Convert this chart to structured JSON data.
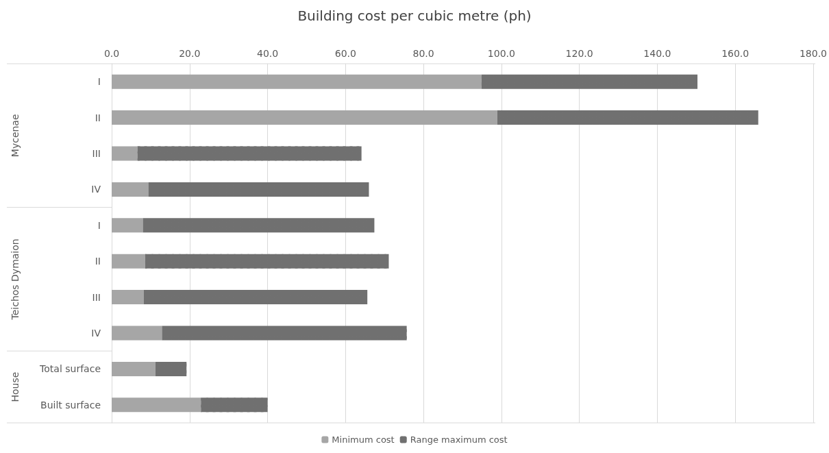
{
  "chart_data": {
    "type": "bar",
    "orientation": "horizontal",
    "stacked": true,
    "title": "Building cost per cubic metre (ph)",
    "categories": [
      "I",
      "II",
      "III",
      "IV",
      "I",
      "II",
      "III",
      "IV",
      "Total surface",
      "Built surface"
    ],
    "series": [
      {
        "name": "Minimum cost",
        "color": "#a6a6a6",
        "values": [
          94.9,
          98.9,
          6.6,
          9.4,
          8.0,
          8.6,
          8.2,
          12.9,
          11.2,
          22.9
        ]
      },
      {
        "name": "Range maximum cost",
        "color": "#707070",
        "values": [
          55.4,
          67.0,
          57.5,
          56.6,
          59.4,
          62.5,
          57.4,
          62.8,
          8.0,
          17.1
        ]
      }
    ],
    "xlim": [
      0,
      180
    ],
    "xticks": [
      {
        "value": 0,
        "label": "0.0"
      },
      {
        "value": 20,
        "label": "20.0"
      },
      {
        "value": 40,
        "label": "40.0"
      },
      {
        "value": 60,
        "label": "60.0"
      },
      {
        "value": 80,
        "label": "80.0"
      },
      {
        "value": 100,
        "label": "100.0"
      },
      {
        "value": 120,
        "label": "120.0"
      },
      {
        "value": 140,
        "label": "140.0"
      },
      {
        "value": 160,
        "label": "160.0"
      },
      {
        "value": 180,
        "label": "180.0"
      }
    ],
    "annotations": [
      "Mycenae",
      "Teichos Dymaion",
      "House"
    ],
    "grid": "x",
    "legend": "bottom"
  }
}
